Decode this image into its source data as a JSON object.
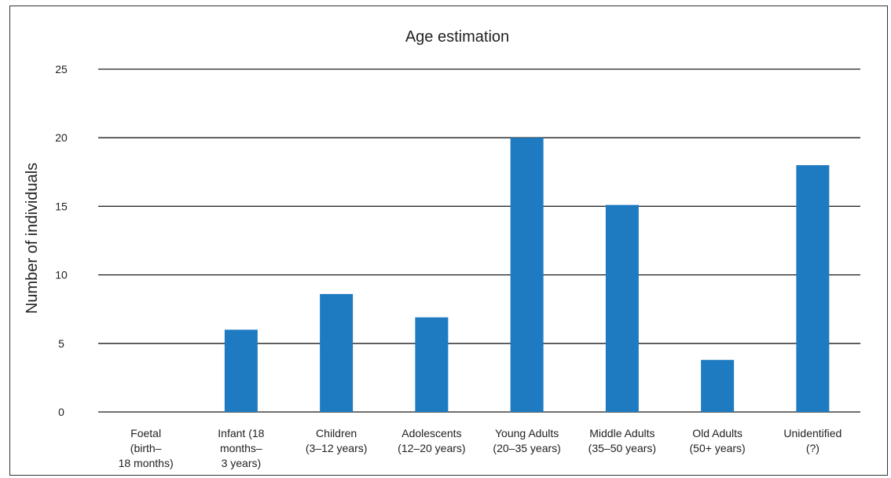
{
  "chart_data": {
    "type": "bar",
    "title": "Age estimation",
    "xlabel": "",
    "ylabel": "Number of individuals",
    "ylim": [
      0,
      25
    ],
    "yticks": [
      0,
      5,
      10,
      15,
      20,
      25
    ],
    "grid": true,
    "categories": [
      [
        "Foetal",
        "(birth–",
        "18 months)"
      ],
      [
        "Infant (18",
        "months–",
        "3 years)"
      ],
      [
        "Children",
        "(3–12 years)"
      ],
      [
        "Adolescents",
        "(12–20 years)"
      ],
      [
        "Young Adults",
        "(20–35 years)"
      ],
      [
        "Middle Adults",
        "(35–50 years)"
      ],
      [
        "Old Adults",
        "(50+ years)"
      ],
      [
        "Unidentified",
        "(?)"
      ]
    ],
    "values": [
      0,
      6,
      8.6,
      6.9,
      20,
      15.1,
      3.8,
      18
    ],
    "bar_color": "#1f7bc1",
    "grid_color": "#1a1a1a"
  }
}
